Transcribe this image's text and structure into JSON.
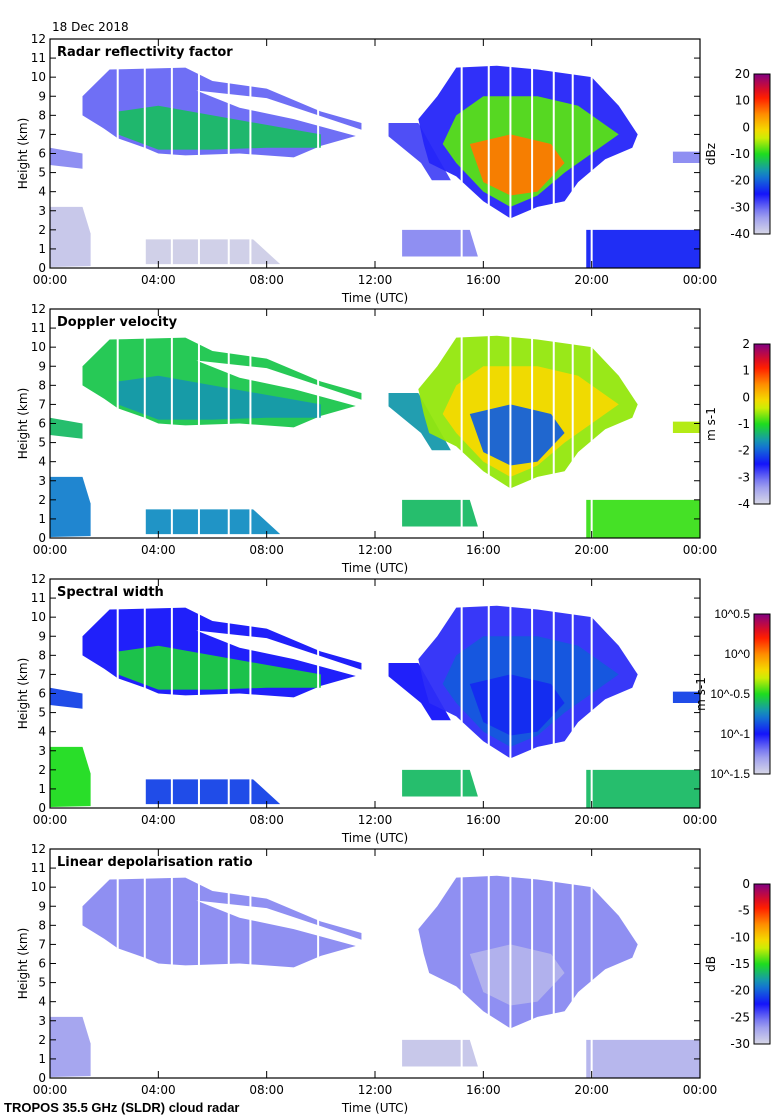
{
  "header": {
    "date": "18 Dec 2018"
  },
  "footer": {
    "instrument": "TROPOS 35.5 GHz (SLDR) cloud radar"
  },
  "chart_data": {
    "type": "heatmap",
    "xlabel": "Time (UTC)",
    "ylabel": "Height (km)",
    "xlim_hours": [
      0,
      24
    ],
    "ylim": [
      0,
      12
    ],
    "x_ticks": [
      "00:00",
      "04:00",
      "08:00",
      "12:00",
      "16:00",
      "20:00",
      "00:00"
    ],
    "y_ticks": [
      "0",
      "1",
      "2",
      "3",
      "4",
      "5",
      "6",
      "7",
      "8",
      "9",
      "10",
      "11",
      "12"
    ],
    "data_gaps_hours": [
      2.5,
      3.5,
      4.5,
      5.5,
      6.6,
      7.4,
      9.9,
      15.2,
      16.2,
      17.0,
      17.8,
      18.6,
      19.3,
      20.0
    ],
    "shapes": {
      "upper_cloud": [
        [
          1.2,
          9
        ],
        [
          2.2,
          10.4
        ],
        [
          5,
          10.5
        ],
        [
          6,
          9.8
        ],
        [
          8,
          9.4
        ],
        [
          10,
          8.2
        ],
        [
          11.5,
          7.6
        ],
        [
          11.5,
          7
        ],
        [
          10,
          6.4
        ],
        [
          9,
          5.8
        ],
        [
          7,
          6
        ],
        [
          5,
          5.9
        ],
        [
          4,
          6
        ],
        [
          3.5,
          6.3
        ],
        [
          2.5,
          6.8
        ],
        [
          2,
          7.3
        ],
        [
          1.2,
          8
        ]
      ],
      "upper_gap": [
        [
          5.4,
          9.3
        ],
        [
          8,
          8.9
        ],
        [
          11.6,
          7.2
        ],
        [
          11.6,
          6.8
        ],
        [
          9,
          7.8
        ],
        [
          7,
          8.4
        ]
      ],
      "upper_core": [
        [
          2.5,
          8.2
        ],
        [
          4,
          8.5
        ],
        [
          6,
          8
        ],
        [
          8,
          7.5
        ],
        [
          10,
          7
        ],
        [
          10,
          6.3
        ],
        [
          8,
          6.3
        ],
        [
          6,
          6.2
        ],
        [
          4,
          6.2
        ],
        [
          2.5,
          7
        ]
      ],
      "left_patch": [
        [
          0,
          6.3
        ],
        [
          1.2,
          6
        ],
        [
          1.2,
          5.2
        ],
        [
          0,
          5.4
        ]
      ],
      "right_patch": [
        [
          23,
          6.1
        ],
        [
          24,
          6.1
        ],
        [
          24,
          5.5
        ],
        [
          23,
          5.5
        ]
      ],
      "band": [
        [
          12.5,
          7.6
        ],
        [
          13.6,
          7.6
        ],
        [
          14.4,
          5.6
        ],
        [
          14.8,
          4.6
        ],
        [
          14.1,
          4.6
        ],
        [
          13.7,
          5.5
        ],
        [
          12.5,
          6.9
        ]
      ],
      "second_cloud": [
        [
          13.6,
          7.8
        ],
        [
          14.3,
          9
        ],
        [
          15,
          10.5
        ],
        [
          16.5,
          10.6
        ],
        [
          18,
          10.4
        ],
        [
          20,
          10
        ],
        [
          21,
          8.5
        ],
        [
          21.7,
          7
        ],
        [
          21.5,
          6.3
        ],
        [
          20.5,
          5.7
        ],
        [
          19.5,
          4.5
        ],
        [
          19,
          3.5
        ],
        [
          18,
          3.2
        ],
        [
          17,
          2.6
        ],
        [
          16,
          3.5
        ],
        [
          15,
          4.8
        ],
        [
          14,
          5.5
        ],
        [
          13.8,
          6.5
        ]
      ],
      "second_core": [
        [
          15,
          8
        ],
        [
          16,
          9
        ],
        [
          18,
          9
        ],
        [
          19.5,
          8.5
        ],
        [
          21,
          7
        ],
        [
          20,
          6
        ],
        [
          19,
          5
        ],
        [
          18,
          3.8
        ],
        [
          17,
          3.2
        ],
        [
          16,
          4
        ],
        [
          15,
          5.5
        ],
        [
          14.5,
          6.5
        ]
      ],
      "second_inner": [
        [
          15.5,
          6.5
        ],
        [
          17,
          7
        ],
        [
          18.5,
          6.5
        ],
        [
          19,
          5.5
        ],
        [
          18,
          4
        ],
        [
          17,
          3.8
        ],
        [
          16,
          4.5
        ]
      ],
      "low_left": [
        [
          0,
          3.2
        ],
        [
          1.2,
          3.2
        ],
        [
          1.5,
          1.8
        ],
        [
          1.5,
          0.1
        ],
        [
          0,
          0.05
        ]
      ],
      "low_scattered": [
        [
          3.5,
          1.5
        ],
        [
          7.5,
          1.5
        ],
        [
          8.5,
          0.2
        ],
        [
          3.5,
          0.2
        ]
      ],
      "low_afternoon": [
        [
          13,
          2
        ],
        [
          15.5,
          2
        ],
        [
          15.8,
          0.6
        ],
        [
          13,
          0.6
        ]
      ],
      "low_evening": [
        [
          19.8,
          2
        ],
        [
          24,
          2
        ],
        [
          24,
          0
        ],
        [
          19.8,
          0
        ]
      ]
    },
    "panels": [
      {
        "title": "Radar reflectivity factor",
        "unit": "dBz",
        "scale": "linear",
        "range": [
          -40,
          20
        ],
        "colorbar_ticks": [
          "20",
          "10",
          "0",
          "-10",
          "-20",
          "-30",
          "-40"
        ],
        "regions": [
          {
            "shape": "upper_cloud",
            "value": -30
          },
          {
            "shape": "upper_core",
            "value": -13
          },
          {
            "shape": "upper_gap",
            "value": null
          },
          {
            "shape": "left_patch",
            "value": -32
          },
          {
            "shape": "right_patch",
            "value": -32
          },
          {
            "shape": "band",
            "value": -28
          },
          {
            "shape": "second_cloud",
            "value": -26
          },
          {
            "shape": "second_core",
            "value": -8
          },
          {
            "shape": "second_inner",
            "value": 6
          },
          {
            "shape": "low_left",
            "value": -38
          },
          {
            "shape": "low_scattered",
            "value": -39
          },
          {
            "shape": "low_afternoon",
            "value": -32
          },
          {
            "shape": "low_evening",
            "value": -24
          }
        ]
      },
      {
        "title": "Doppler velocity",
        "unit": "m s-1",
        "scale": "linear",
        "range": [
          -4,
          2
        ],
        "colorbar_ticks": [
          "2",
          "1",
          "0",
          "-1",
          "-2",
          "-3",
          "-4"
        ],
        "regions": [
          {
            "shape": "upper_cloud",
            "value": -1.2
          },
          {
            "shape": "upper_core",
            "value": -1.6
          },
          {
            "shape": "upper_gap",
            "value": null
          },
          {
            "shape": "left_patch",
            "value": -1.3
          },
          {
            "shape": "right_patch",
            "value": -0.5
          },
          {
            "shape": "band",
            "value": -1.6
          },
          {
            "shape": "second_cloud",
            "value": -0.6
          },
          {
            "shape": "second_core",
            "value": -0.1
          },
          {
            "shape": "second_inner",
            "value": -2.0
          },
          {
            "shape": "low_left",
            "value": -1.8
          },
          {
            "shape": "low_scattered",
            "value": -1.7
          },
          {
            "shape": "low_afternoon",
            "value": -1.3
          },
          {
            "shape": "low_evening",
            "value": -0.9
          }
        ]
      },
      {
        "title": "Spectral width",
        "unit": "m s-1",
        "scale": "log10",
        "range": [
          -1.5,
          0.5
        ],
        "colorbar_ticks": [
          "10^0.5",
          "10^0",
          "10^-0.5",
          "10^-1",
          "10^-1.5"
        ],
        "regions": [
          {
            "shape": "upper_cloud",
            "value": -1.0
          },
          {
            "shape": "upper_core",
            "value": -0.55
          },
          {
            "shape": "upper_gap",
            "value": null
          },
          {
            "shape": "left_patch",
            "value": -0.9
          },
          {
            "shape": "right_patch",
            "value": -0.9
          },
          {
            "shape": "band",
            "value": -1.0
          },
          {
            "shape": "second_cloud",
            "value": -1.05
          },
          {
            "shape": "second_core",
            "value": -0.85
          },
          {
            "shape": "second_inner",
            "value": -0.95
          },
          {
            "shape": "low_left",
            "value": -0.5
          },
          {
            "shape": "low_scattered",
            "value": -0.9
          },
          {
            "shape": "low_afternoon",
            "value": -0.6
          },
          {
            "shape": "low_evening",
            "value": -0.6
          }
        ]
      },
      {
        "title": "Linear depolarisation ratio",
        "unit": "dB",
        "scale": "linear",
        "range": [
          -30,
          0
        ],
        "colorbar_ticks": [
          "0",
          "-5",
          "-10",
          "-15",
          "-20",
          "-25",
          "-30"
        ],
        "regions": [
          {
            "shape": "upper_cloud",
            "value": -26
          },
          {
            "shape": "upper_gap",
            "value": null
          },
          {
            "shape": "second_cloud",
            "value": -26
          },
          {
            "shape": "second_inner",
            "value": -28
          },
          {
            "shape": "low_left",
            "value": -27
          },
          {
            "shape": "low_afternoon",
            "value": -29
          },
          {
            "shape": "low_evening",
            "value": -28
          }
        ]
      }
    ]
  }
}
